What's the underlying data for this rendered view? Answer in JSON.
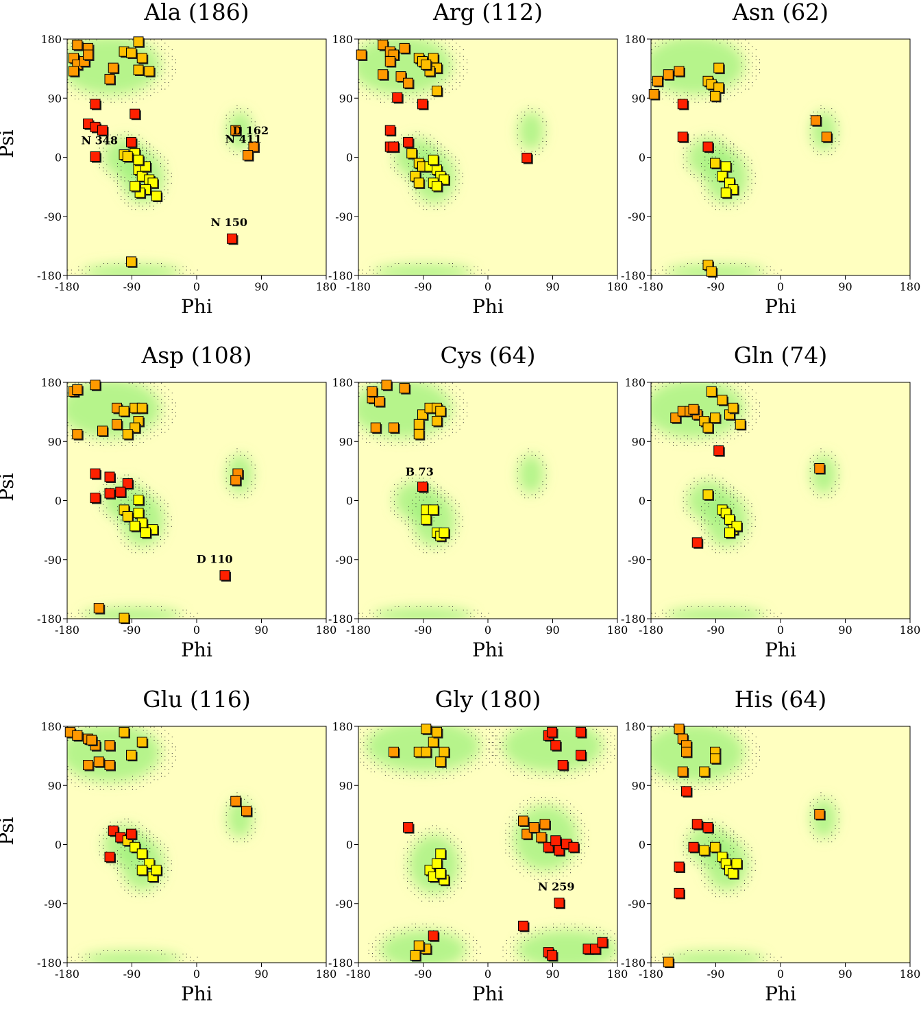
{
  "axis": {
    "xlabel": "Phi",
    "ylabel": "Psi",
    "ticks": [
      "-180",
      "-90",
      "0",
      "90",
      "180"
    ]
  },
  "chart_data": [
    {
      "type": "scatter",
      "title": "Ala (186)",
      "xlim": [
        -180,
        180
      ],
      "ylim": [
        -180,
        180
      ],
      "points": [
        [
          -165,
          170
        ],
        [
          -150,
          165
        ],
        [
          -170,
          150
        ],
        [
          -165,
          140
        ],
        [
          -155,
          145
        ],
        [
          -150,
          155
        ],
        [
          -100,
          160
        ],
        [
          -90,
          158
        ],
        [
          -80,
          175
        ],
        [
          -75,
          150
        ],
        [
          -65,
          130
        ],
        [
          -80,
          132
        ],
        [
          -115,
          135
        ],
        [
          -120,
          118
        ],
        [
          -170,
          130
        ],
        [
          -140,
          80
        ],
        [
          -85,
          65
        ],
        [
          -150,
          50
        ],
        [
          -140,
          45
        ],
        [
          -130,
          40
        ],
        [
          -140,
          0
        ],
        [
          -90,
          22
        ],
        [
          -100,
          3
        ],
        [
          -85,
          5
        ],
        [
          -95,
          0
        ],
        [
          -80,
          -20
        ],
        [
          -75,
          -30
        ],
        [
          -70,
          -15
        ],
        [
          -65,
          -35
        ],
        [
          -60,
          -40
        ],
        [
          -70,
          -50
        ],
        [
          -78,
          -55
        ],
        [
          -55,
          -60
        ],
        [
          -85,
          -45
        ],
        [
          -80,
          -5
        ],
        [
          -90,
          -160
        ],
        [
          50,
          -125
        ],
        [
          55,
          40
        ],
        [
          80,
          15
        ],
        [
          72,
          2
        ]
      ],
      "labels": [
        {
          "text": "N 348",
          "x": -135,
          "y": 20
        },
        {
          "text": "D 162",
          "x": 75,
          "y": 35
        },
        {
          "text": "N 411",
          "x": 65,
          "y": 22
        },
        {
          "text": "N 150",
          "x": 45,
          "y": -105
        }
      ]
    },
    {
      "type": "scatter",
      "title": "Arg (112)",
      "xlim": [
        -180,
        180
      ],
      "ylim": [
        -180,
        180
      ],
      "points": [
        [
          -175,
          155
        ],
        [
          -145,
          170
        ],
        [
          -135,
          160
        ],
        [
          -130,
          155
        ],
        [
          -115,
          165
        ],
        [
          -95,
          150
        ],
        [
          -90,
          145
        ],
        [
          -75,
          150
        ],
        [
          -70,
          135
        ],
        [
          -80,
          130
        ],
        [
          -85,
          140
        ],
        [
          -145,
          125
        ],
        [
          -120,
          122
        ],
        [
          -110,
          112
        ],
        [
          -135,
          145
        ],
        [
          -125,
          90
        ],
        [
          -90,
          80
        ],
        [
          -70,
          100
        ],
        [
          -135,
          40
        ],
        [
          -135,
          15
        ],
        [
          -130,
          15
        ],
        [
          -110,
          22
        ],
        [
          -105,
          5
        ],
        [
          -95,
          -10
        ],
        [
          -90,
          -15
        ],
        [
          -80,
          -15
        ],
        [
          -70,
          -20
        ],
        [
          -65,
          -30
        ],
        [
          -60,
          -35
        ],
        [
          -75,
          -40
        ],
        [
          -70,
          -45
        ],
        [
          -100,
          -30
        ],
        [
          -95,
          -40
        ],
        [
          -75,
          -5
        ],
        [
          55,
          -2
        ]
      ],
      "labels": []
    },
    {
      "type": "scatter",
      "title": "Asn (62)",
      "xlim": [
        -180,
        180
      ],
      "ylim": [
        -180,
        180
      ],
      "points": [
        [
          -175,
          95
        ],
        [
          -170,
          115
        ],
        [
          -155,
          125
        ],
        [
          -140,
          130
        ],
        [
          -135,
          80
        ],
        [
          -100,
          115
        ],
        [
          -95,
          110
        ],
        [
          -85,
          135
        ],
        [
          -85,
          105
        ],
        [
          -90,
          92
        ],
        [
          -135,
          30
        ],
        [
          -100,
          15
        ],
        [
          -90,
          -10
        ],
        [
          -75,
          -15
        ],
        [
          -80,
          -30
        ],
        [
          -70,
          -40
        ],
        [
          -65,
          -50
        ],
        [
          -75,
          -55
        ],
        [
          -100,
          -165
        ],
        [
          -95,
          -175
        ],
        [
          50,
          55
        ],
        [
          65,
          30
        ]
      ],
      "labels": []
    },
    {
      "type": "scatter",
      "title": "Asp (108)",
      "xlim": [
        -180,
        180
      ],
      "ylim": [
        -180,
        180
      ],
      "points": [
        [
          -170,
          165
        ],
        [
          -165,
          168
        ],
        [
          -140,
          175
        ],
        [
          -165,
          100
        ],
        [
          -110,
          140
        ],
        [
          -100,
          135
        ],
        [
          -85,
          140
        ],
        [
          -75,
          140
        ],
        [
          -80,
          120
        ],
        [
          -85,
          110
        ],
        [
          -110,
          115
        ],
        [
          -95,
          100
        ],
        [
          -130,
          105
        ],
        [
          -140,
          40
        ],
        [
          -120,
          35
        ],
        [
          -95,
          25
        ],
        [
          -140,
          3
        ],
        [
          -120,
          10
        ],
        [
          -105,
          12
        ],
        [
          -100,
          -15
        ],
        [
          -95,
          -25
        ],
        [
          -80,
          0
        ],
        [
          -80,
          -20
        ],
        [
          -75,
          -35
        ],
        [
          -85,
          -40
        ],
        [
          -60,
          -45
        ],
        [
          -70,
          -50
        ],
        [
          -135,
          -165
        ],
        [
          -100,
          -180
        ],
        [
          40,
          -115
        ],
        [
          58,
          40
        ],
        [
          55,
          30
        ]
      ],
      "labels": [
        {
          "text": "D 110",
          "x": 25,
          "y": -95
        }
      ]
    },
    {
      "type": "scatter",
      "title": "Cys (64)",
      "xlim": [
        -180,
        180
      ],
      "ylim": [
        -180,
        180
      ],
      "points": [
        [
          -160,
          155
        ],
        [
          -150,
          150
        ],
        [
          -140,
          175
        ],
        [
          -160,
          165
        ],
        [
          -155,
          110
        ],
        [
          -130,
          110
        ],
        [
          -115,
          170
        ],
        [
          -90,
          130
        ],
        [
          -95,
          115
        ],
        [
          -95,
          100
        ],
        [
          -80,
          140
        ],
        [
          -70,
          140
        ],
        [
          -65,
          135
        ],
        [
          -70,
          120
        ],
        [
          -90,
          20
        ],
        [
          -85,
          -15
        ],
        [
          -85,
          -30
        ],
        [
          -75,
          -15
        ],
        [
          -70,
          -50
        ],
        [
          -65,
          -55
        ],
        [
          -60,
          -50
        ]
      ],
      "labels": [
        {
          "text": "B  73",
          "x": -95,
          "y": 38
        }
      ]
    },
    {
      "type": "scatter",
      "title": "Gln (74)",
      "xlim": [
        -180,
        180
      ],
      "ylim": [
        -180,
        180
      ],
      "points": [
        [
          -145,
          125
        ],
        [
          -135,
          135
        ],
        [
          -125,
          135
        ],
        [
          -115,
          130
        ],
        [
          -120,
          138
        ],
        [
          -105,
          120
        ],
        [
          -100,
          110
        ],
        [
          -95,
          165
        ],
        [
          -90,
          125
        ],
        [
          -80,
          152
        ],
        [
          -70,
          130
        ],
        [
          -65,
          140
        ],
        [
          -55,
          115
        ],
        [
          -85,
          75
        ],
        [
          -100,
          8
        ],
        [
          -80,
          -15
        ],
        [
          -75,
          -20
        ],
        [
          -70,
          -30
        ],
        [
          -65,
          -45
        ],
        [
          -60,
          -40
        ],
        [
          -70,
          -50
        ],
        [
          -115,
          -65
        ],
        [
          55,
          48
        ]
      ],
      "labels": []
    },
    {
      "type": "scatter",
      "title": "Glu (116)",
      "xlim": [
        -180,
        180
      ],
      "ylim": [
        -180,
        180
      ],
      "points": [
        [
          -175,
          170
        ],
        [
          -165,
          165
        ],
        [
          -150,
          160
        ],
        [
          -140,
          150
        ],
        [
          -145,
          158
        ],
        [
          -120,
          150
        ],
        [
          -100,
          170
        ],
        [
          -90,
          135
        ],
        [
          -75,
          155
        ],
        [
          -135,
          125
        ],
        [
          -120,
          120
        ],
        [
          -150,
          120
        ],
        [
          -115,
          20
        ],
        [
          -105,
          10
        ],
        [
          -95,
          5
        ],
        [
          -90,
          15
        ],
        [
          -85,
          -5
        ],
        [
          -75,
          -15
        ],
        [
          -65,
          -30
        ],
        [
          -75,
          -40
        ],
        [
          -60,
          -50
        ],
        [
          -55,
          -40
        ],
        [
          -120,
          -20
        ],
        [
          55,
          65
        ],
        [
          70,
          50
        ]
      ],
      "labels": []
    },
    {
      "type": "scatter",
      "title": "Gly (180)",
      "xlim": [
        -180,
        180
      ],
      "ylim": [
        -180,
        180
      ],
      "points": [
        [
          -130,
          140
        ],
        [
          -95,
          140
        ],
        [
          -85,
          140
        ],
        [
          -85,
          175
        ],
        [
          -75,
          155
        ],
        [
          -70,
          170
        ],
        [
          -60,
          140
        ],
        [
          -65,
          125
        ],
        [
          -110,
          25
        ],
        [
          -80,
          -40
        ],
        [
          -65,
          -15
        ],
        [
          -70,
          -30
        ],
        [
          -75,
          -50
        ],
        [
          -60,
          -55
        ],
        [
          -65,
          -45
        ],
        [
          -75,
          -140
        ],
        [
          -85,
          -160
        ],
        [
          -95,
          -155
        ],
        [
          -100,
          -170
        ],
        [
          50,
          35
        ],
        [
          55,
          15
        ],
        [
          65,
          25
        ],
        [
          75,
          10
        ],
        [
          85,
          -5
        ],
        [
          95,
          5
        ],
        [
          100,
          -10
        ],
        [
          80,
          30
        ],
        [
          110,
          0
        ],
        [
          120,
          -5
        ],
        [
          85,
          165
        ],
        [
          90,
          170
        ],
        [
          95,
          150
        ],
        [
          100,
          -90
        ],
        [
          105,
          120
        ],
        [
          130,
          135
        ],
        [
          130,
          170
        ],
        [
          140,
          -160
        ],
        [
          150,
          -160
        ],
        [
          160,
          -150
        ],
        [
          85,
          -165
        ],
        [
          90,
          -170
        ],
        [
          50,
          -125
        ]
      ],
      "labels": [
        {
          "text": "N 259",
          "x": 95,
          "y": -70
        }
      ]
    },
    {
      "type": "scatter",
      "title": "His (64)",
      "xlim": [
        -180,
        180
      ],
      "ylim": [
        -180,
        180
      ],
      "points": [
        [
          -140,
          175
        ],
        [
          -135,
          160
        ],
        [
          -130,
          150
        ],
        [
          -130,
          140
        ],
        [
          -135,
          110
        ],
        [
          -130,
          80
        ],
        [
          -105,
          110
        ],
        [
          -90,
          140
        ],
        [
          -90,
          130
        ],
        [
          -115,
          30
        ],
        [
          -100,
          25
        ],
        [
          -120,
          -5
        ],
        [
          -105,
          -10
        ],
        [
          -90,
          -5
        ],
        [
          -80,
          -20
        ],
        [
          -75,
          -30
        ],
        [
          -70,
          -40
        ],
        [
          -65,
          -45
        ],
        [
          -60,
          -30
        ],
        [
          -140,
          -35
        ],
        [
          -140,
          -75
        ],
        [
          -155,
          -180
        ],
        [
          55,
          45
        ]
      ],
      "labels": []
    }
  ]
}
